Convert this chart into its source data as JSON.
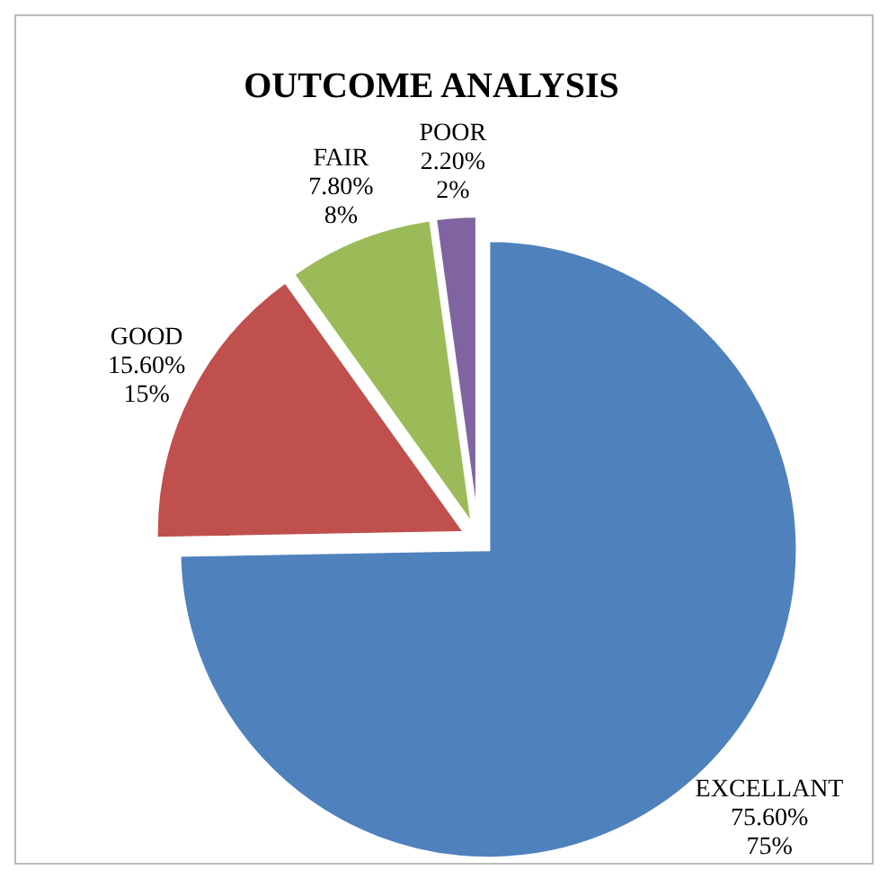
{
  "chart_data": {
    "type": "pie",
    "title": "OUTCOME ANALYSIS",
    "categories": [
      "EXCELLANT",
      "GOOD",
      "FAIR",
      "POOR"
    ],
    "values": [
      75.6,
      15.6,
      7.8,
      2.2
    ],
    "value_labels": [
      "75.60%\n75%",
      "15.60%\n15%",
      "7.80%\n8%",
      "2.20%\n2%"
    ],
    "colors": [
      "#4f81bd",
      "#c0504d",
      "#9bbb59",
      "#8064a2"
    ]
  }
}
